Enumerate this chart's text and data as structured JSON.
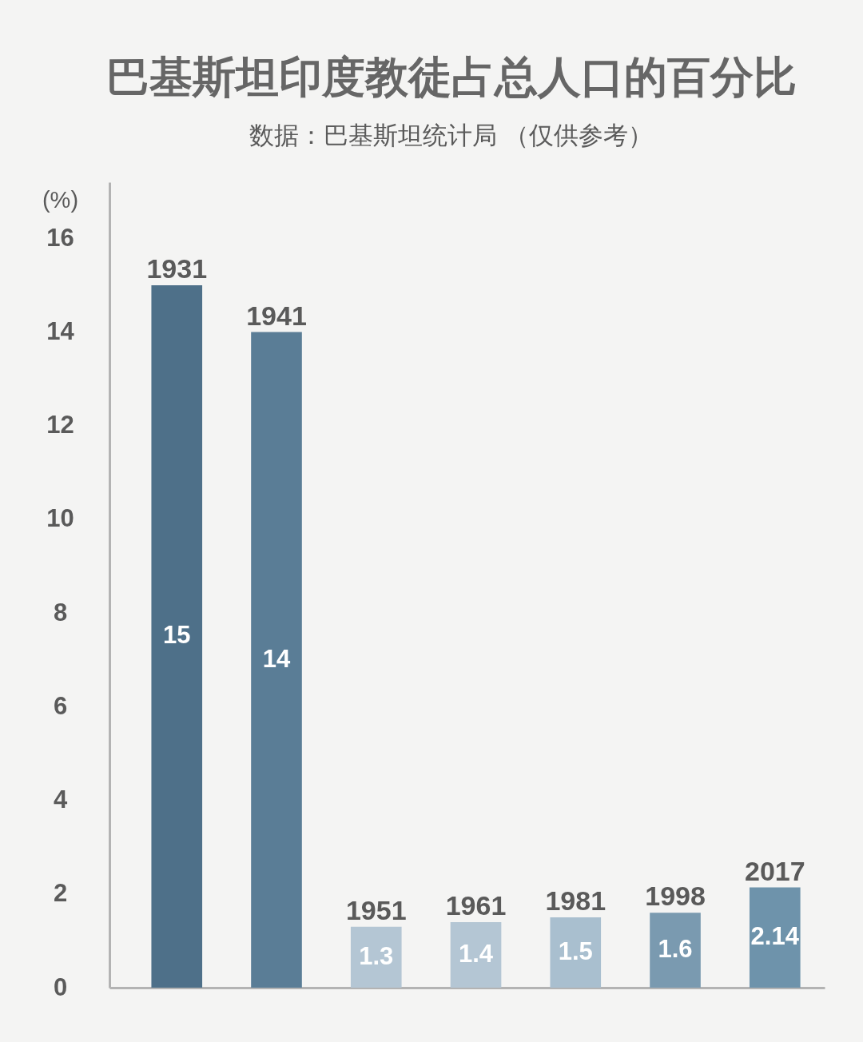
{
  "chart_data": {
    "type": "bar",
    "title": "巴基斯坦印度教徒占总人口的百分比",
    "subtitle": "数据：巴基斯坦统计局 （仅供参考）",
    "ylabel": "(%)",
    "categories": [
      "1931",
      "1941",
      "1951",
      "1961",
      "1981",
      "1998",
      "2017"
    ],
    "values": [
      15,
      14,
      1.3,
      1.4,
      1.5,
      1.6,
      2.14
    ],
    "colors": [
      "#4e7089",
      "#5a7d96",
      "#b4c6d4",
      "#b4c6d4",
      "#a9bfcf",
      "#7a9ab0",
      "#6e93ab"
    ],
    "ylim": [
      0,
      17.2
    ],
    "yticks": [
      0,
      2,
      4,
      6,
      8,
      10,
      12,
      14,
      16
    ],
    "data_labels": true
  }
}
